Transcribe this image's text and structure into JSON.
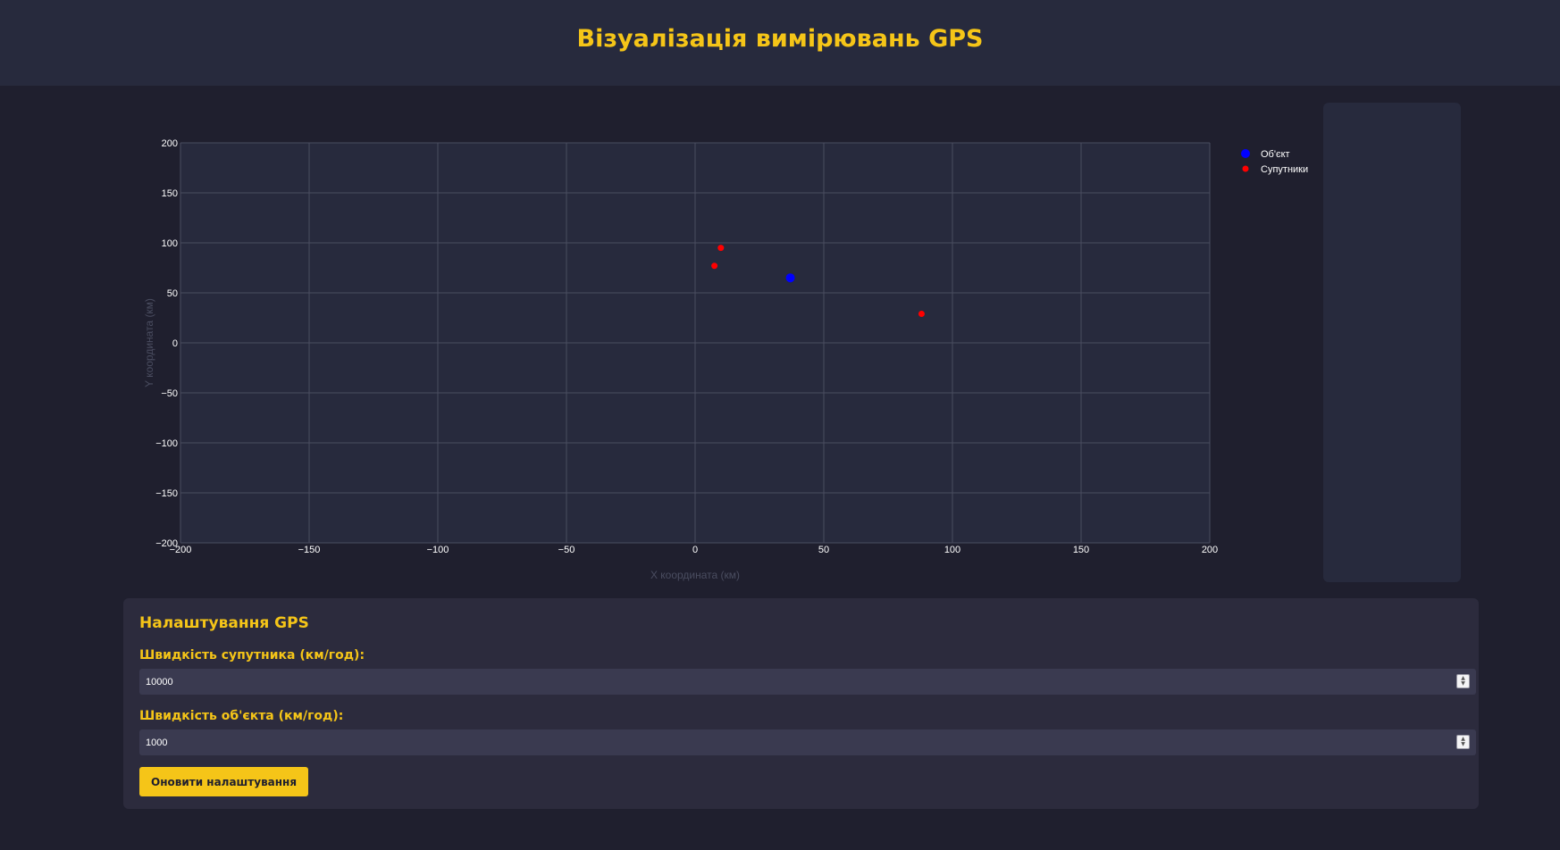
{
  "header": {
    "title": "Візуалізація вимірювань GPS"
  },
  "settings": {
    "title": "Налаштування GPS",
    "satellite_speed_label": "Швидкість супутника (км/год):",
    "satellite_speed_value": "10000",
    "object_speed_label": "Швидкість об'єкта (км/год):",
    "object_speed_value": "1000",
    "update_button": "Оновити налаштування"
  },
  "colors": {
    "accent": "#f5c518",
    "object_marker": "#0000ff",
    "satellite_marker": "#ff0000"
  },
  "chart_data": {
    "type": "scatter",
    "xlabel": "X координата (км)",
    "ylabel": "Y координата (км)",
    "xlim": [
      -200,
      200
    ],
    "ylim": [
      -200,
      200
    ],
    "xticks": [
      -200,
      -150,
      -100,
      -50,
      0,
      50,
      100,
      150,
      200
    ],
    "yticks": [
      -200,
      -150,
      -100,
      -50,
      0,
      50,
      100,
      150,
      200
    ],
    "grid": true,
    "legend_position": "top-right",
    "series": [
      {
        "name": "Об'єкт",
        "color": "#0000ff",
        "points": [
          [
            37,
            65
          ]
        ]
      },
      {
        "name": "Супутники",
        "color": "#ff0000",
        "points": [
          [
            10,
            95
          ],
          [
            7.5,
            77
          ],
          [
            88,
            29
          ]
        ]
      }
    ]
  }
}
